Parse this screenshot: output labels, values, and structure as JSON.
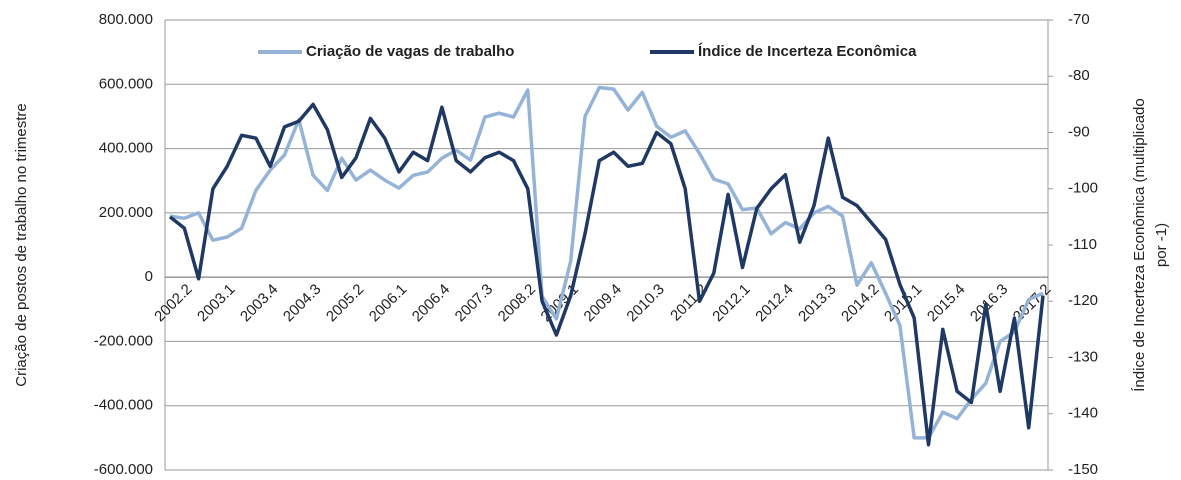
{
  "chart_data": {
    "type": "line",
    "y_label": "Criação de postos de trabalho no trimestre",
    "y2_label": [
      "Índice de Incerteza Econômica (multiplicado",
      "por -1)"
    ],
    "categories": [
      "2002.2",
      null,
      null,
      "2003.1",
      null,
      null,
      "2003.4",
      null,
      null,
      "2004.3",
      null,
      null,
      "2005.2",
      null,
      null,
      "2006.1",
      null,
      null,
      "2006.4",
      null,
      null,
      "2007.3",
      null,
      null,
      "2008.2",
      null,
      null,
      "2009.1",
      null,
      null,
      "2009.4",
      null,
      null,
      "2010.3",
      null,
      null,
      "2011.2",
      null,
      null,
      "2012.1",
      null,
      null,
      "2012.4",
      null,
      null,
      "2013.3",
      null,
      null,
      "2014.2",
      null,
      null,
      "2015.1",
      null,
      null,
      "2015.4",
      null,
      null,
      "2016.3",
      null,
      null,
      "2017.2",
      null
    ],
    "series": [
      {
        "name": "Criação de vagas de trabalho",
        "color": "#95b3d7",
        "values": [
          190000,
          183000,
          200000,
          115000,
          125000,
          152000,
          270000,
          333000,
          380000,
          490000,
          317000,
          270000,
          370000,
          302000,
          333000,
          302000,
          277000,
          317000,
          327000,
          370000,
          395000,
          364000,
          498000,
          510000,
          498000,
          582000,
          -60000,
          -130000,
          50000,
          500000,
          590000,
          585000,
          520000,
          575000,
          470000,
          435000,
          455000,
          385000,
          305000,
          290000,
          210000,
          215000,
          135000,
          170000,
          150000,
          200000,
          220000,
          190000,
          -25000,
          45000,
          -50000,
          -150000,
          -500000,
          -500000,
          -420000,
          -440000,
          -380000,
          -330000,
          -200000,
          -170000,
          -70000,
          -50000
        ]
      },
      {
        "name": "Índice de Incerteza Econômica",
        "color": "#1f3864",
        "axis": "y2",
        "values": [
          -105,
          -107,
          -116,
          -100,
          -96,
          -90.5,
          -91,
          -96,
          -89,
          -88,
          -85,
          -89.5,
          -98,
          -94.5,
          -87.5,
          -91,
          -97,
          -93.5,
          -95,
          -85.5,
          -95,
          -97,
          -94.5,
          -93.5,
          -95,
          -100,
          -120,
          -126,
          -119,
          -108,
          -95,
          -93.5,
          -96,
          -95.5,
          -90,
          -92,
          -100,
          -120,
          -115,
          -101,
          -114,
          -103.5,
          -100,
          -97.5,
          -109.5,
          -103,
          -91,
          -101.5,
          -103,
          -106,
          -109,
          -117,
          -123,
          -145.5,
          -125,
          -136,
          -138,
          -120.5,
          -136,
          -123,
          -142.5,
          -119
        ]
      }
    ],
    "ylim": [
      -600000,
      800000
    ],
    "yticks": [
      {
        "value": -600000,
        "label": "-600.000"
      },
      {
        "value": -400000,
        "label": "-400.000"
      },
      {
        "value": -200000,
        "label": "-200.000"
      },
      0,
      {
        "value": 200000,
        "label": "200.000"
      },
      {
        "value": 400000,
        "label": "400.000"
      },
      {
        "value": 600000,
        "label": "600.000"
      },
      {
        "value": 800000,
        "label": "800.000"
      }
    ],
    "y2lim": [
      -150,
      -70
    ],
    "y2ticks": [
      -150,
      -140,
      -130,
      -120,
      -110,
      -100,
      -90,
      -80,
      -70
    ],
    "grid": true,
    "legend": "top"
  }
}
